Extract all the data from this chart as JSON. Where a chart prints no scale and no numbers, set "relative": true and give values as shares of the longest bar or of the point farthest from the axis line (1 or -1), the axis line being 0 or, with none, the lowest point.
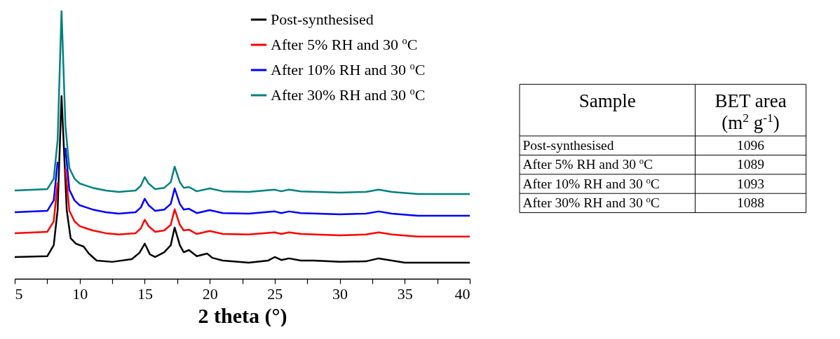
{
  "chart_data": [
    {
      "type": "line",
      "relative": true,
      "xlabel": "2 theta (°)",
      "xlim": [
        5,
        40
      ],
      "xticks": [
        5,
        {
          "value": 7.5,
          "label": null
        },
        10,
        {
          "value": 12.5,
          "label": null
        },
        15,
        {
          "value": 17.5,
          "label": null
        },
        20,
        {
          "value": 22.5,
          "label": null
        },
        25,
        {
          "value": 27.5,
          "label": null
        },
        30,
        {
          "value": 32.5,
          "label": null
        },
        35,
        {
          "value": 37.5,
          "label": null
        },
        40
      ],
      "legend": "top right",
      "series": [
        {
          "name": "Post-synthesised",
          "color": "#000000",
          "x": [
            5,
            7.5,
            8,
            8.3,
            8.6,
            9,
            9.3,
            9.7,
            10.3,
            10.7,
            11.3,
            12.5,
            14,
            14.6,
            15,
            15.4,
            15.8,
            16.5,
            17,
            17.3,
            17.7,
            18,
            18.4,
            19,
            19.8,
            20.2,
            21,
            23,
            24.5,
            25,
            25.5,
            26.1,
            27,
            28,
            30,
            32,
            33,
            34,
            35,
            40
          ],
          "values": [
            0.081,
            0.084,
            0.125,
            0.256,
            0.681,
            0.256,
            0.151,
            0.131,
            0.12,
            0.094,
            0.068,
            0.063,
            0.073,
            0.097,
            0.131,
            0.091,
            0.081,
            0.099,
            0.125,
            0.191,
            0.125,
            0.099,
            0.107,
            0.084,
            0.094,
            0.078,
            0.068,
            0.06,
            0.068,
            0.081,
            0.07,
            0.076,
            0.068,
            0.068,
            0.063,
            0.065,
            0.076,
            0.068,
            0.06,
            0.06
          ]
        },
        {
          "name": "After 5% RH  and 30 $^{o}$C",
          "color": "#ff0000",
          "x": [
            5,
            7.5,
            8,
            8.3,
            8.6,
            8.9,
            9.2,
            9.6,
            10,
            10.5,
            11,
            12,
            13,
            14.3,
            14.7,
            15,
            15.3,
            15.8,
            16.5,
            17,
            17.3,
            17.7,
            18,
            18.4,
            19,
            20,
            21,
            23,
            25,
            25.5,
            26.1,
            27,
            30,
            32,
            33,
            34,
            36,
            40
          ],
          "values": [
            0.17,
            0.175,
            0.214,
            0.358,
            null,
            0.41,
            0.254,
            0.214,
            0.196,
            0.188,
            0.18,
            0.17,
            0.165,
            0.17,
            0.188,
            0.22,
            0.196,
            0.175,
            0.18,
            0.201,
            0.259,
            0.201,
            0.18,
            0.183,
            0.167,
            0.178,
            0.167,
            0.165,
            0.173,
            0.167,
            0.173,
            0.167,
            0.162,
            0.165,
            0.173,
            0.165,
            0.157,
            0.157
          ]
        },
        {
          "name": "After 10% RH  and 30 $^{o}$C",
          "color": "#0000ff",
          "x": [
            5,
            7.5,
            8,
            8.3,
            8.6,
            8.9,
            9.2,
            9.6,
            10,
            10.5,
            11,
            12,
            13,
            14.3,
            14.7,
            15,
            15.3,
            15.8,
            16.5,
            17,
            17.3,
            17.7,
            18,
            18.4,
            19,
            20,
            21,
            23,
            25,
            25.5,
            26.1,
            27,
            30,
            32,
            33,
            34,
            36,
            40
          ],
          "values": [
            0.248,
            0.253,
            0.292,
            0.436,
            null,
            0.488,
            0.332,
            0.292,
            0.274,
            0.266,
            0.258,
            0.248,
            0.243,
            0.248,
            0.266,
            0.298,
            0.274,
            0.253,
            0.258,
            0.279,
            0.337,
            0.279,
            0.258,
            0.261,
            0.245,
            0.256,
            0.245,
            0.243,
            0.251,
            0.245,
            0.251,
            0.245,
            0.24,
            0.243,
            0.251,
            0.243,
            0.235,
            0.235
          ]
        },
        {
          "name": "After 30% RH and 30 $^{o}$C",
          "color": "#008080",
          "x": [
            5,
            7.5,
            8,
            8.3,
            8.6,
            8.9,
            9.2,
            9.6,
            10,
            10.5,
            11,
            12,
            13,
            14.3,
            14.7,
            15,
            15.3,
            15.8,
            16.5,
            17,
            17.3,
            17.7,
            18,
            18.4,
            19,
            20,
            21,
            23,
            25,
            25.5,
            26.1,
            27,
            30,
            32,
            33,
            34,
            36,
            40
          ],
          "values": [
            0.329,
            0.334,
            0.373,
            0.517,
            1.0,
            0.569,
            0.413,
            0.373,
            0.355,
            0.347,
            0.339,
            0.329,
            0.324,
            0.329,
            0.347,
            0.379,
            0.355,
            0.334,
            0.339,
            0.36,
            0.418,
            0.36,
            0.339,
            0.342,
            0.326,
            0.337,
            0.326,
            0.324,
            0.332,
            0.326,
            0.332,
            0.326,
            0.321,
            0.324,
            0.332,
            0.324,
            0.316,
            0.316
          ]
        }
      ]
    },
    {
      "type": "other",
      "xlabel": "Sample",
      "ylabel": "BET area (m$^{2}$ g$^{-1}$)",
      "categories": [
        "Post-synthesised",
        "After 5% RH and 30 $^{o}$C",
        "After 10% RH and 30 $^{o}$C",
        "After 30% RH and 30 $^{o}$C"
      ],
      "values": [
        1096,
        1089,
        1093,
        1088
      ],
      "data_labels": true
    }
  ]
}
